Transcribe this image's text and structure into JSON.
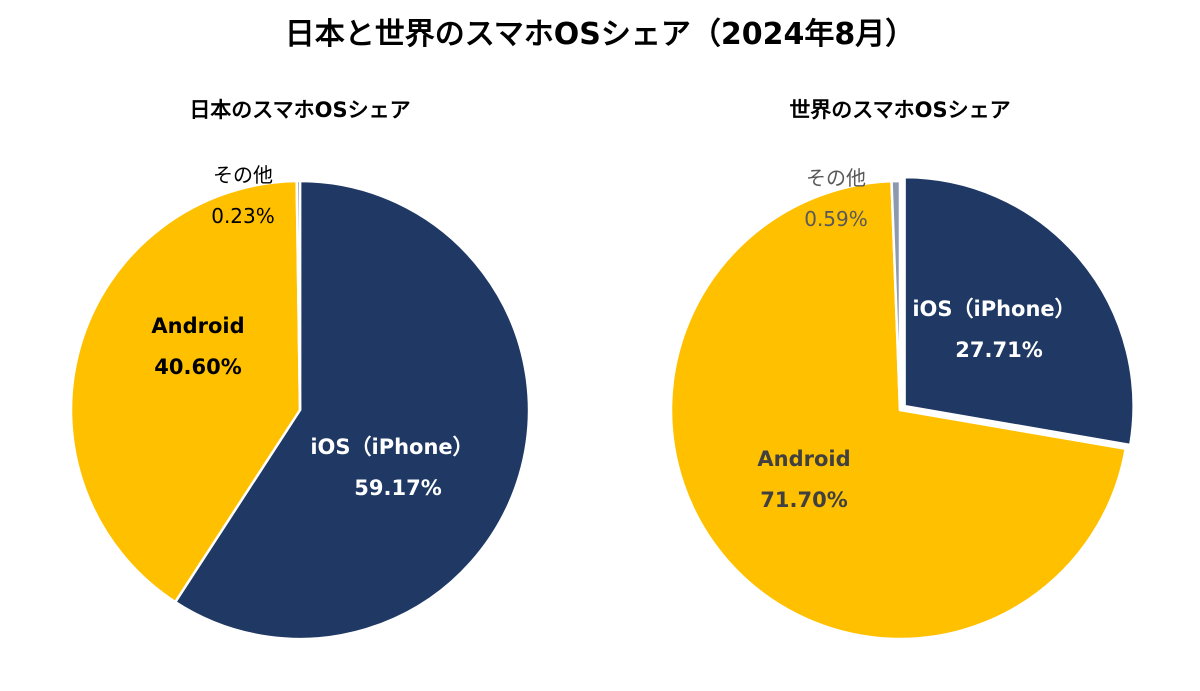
{
  "title": "日本と世界のスマホOSシェア（2024年8月）",
  "chart_data": [
    {
      "type": "pie",
      "title": "日本のスマホOSシェア",
      "slices": [
        {
          "label": "iOS（iPhone）",
          "value": 59.17,
          "value_label": "59.17%",
          "color": "#1F3864"
        },
        {
          "label": "Android",
          "value": 40.6,
          "value_label": "40.60%",
          "color": "#FFC000"
        },
        {
          "label": "その他",
          "value": 0.23,
          "value_label": "0.23%",
          "color": "#8C9AB0"
        }
      ]
    },
    {
      "type": "pie",
      "title": "世界のスマホOSシェア",
      "slices": [
        {
          "label": "iOS（iPhone）",
          "value": 27.71,
          "value_label": "27.71%",
          "color": "#1F3864"
        },
        {
          "label": "Android",
          "value": 71.7,
          "value_label": "71.70%",
          "color": "#FFC000"
        },
        {
          "label": "その他",
          "value": 0.59,
          "value_label": "0.59%",
          "color": "#8C9AB0"
        }
      ]
    }
  ]
}
